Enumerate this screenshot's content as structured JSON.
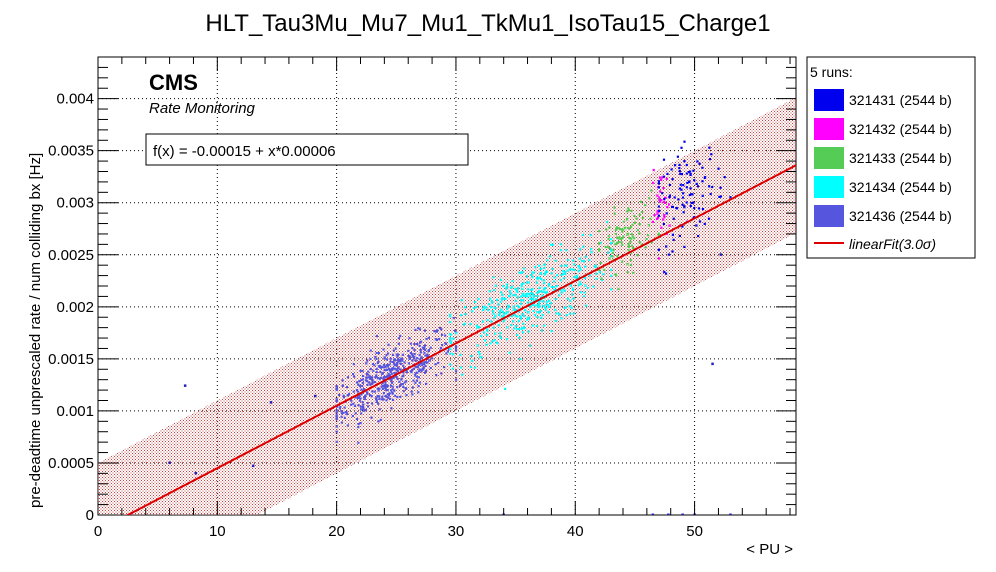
{
  "chart_data": {
    "type": "scatter",
    "title": "HLT_Tau3Mu_Mu7_Mu1_TkMu1_IsoTau15_Charge1",
    "xlabel": "< PU >",
    "ylabel": "pre-deadtime unprescaled rate / num colliding bx [Hz]",
    "xlim": [
      0,
      58.5
    ],
    "ylim": [
      0,
      0.0044
    ],
    "x_ticks": [
      {
        "value": 0,
        "label": "0"
      },
      {
        "value": 10,
        "label": "10"
      },
      {
        "value": 20,
        "label": "20"
      },
      {
        "value": 30,
        "label": "30"
      },
      {
        "value": 40,
        "label": "40"
      },
      {
        "value": 50,
        "label": "50"
      }
    ],
    "y_ticks": [
      {
        "value": 0,
        "label": "0"
      },
      {
        "value": 0.0005,
        "label": "0.0005"
      },
      {
        "value": 0.001,
        "label": "0.001"
      },
      {
        "value": 0.0015,
        "label": "0.0015"
      },
      {
        "value": 0.002,
        "label": "0.002"
      },
      {
        "value": 0.0025,
        "label": "0.0025"
      },
      {
        "value": 0.003,
        "label": "0.003"
      },
      {
        "value": 0.0035,
        "label": "0.0035"
      },
      {
        "value": 0.004,
        "label": "0.004"
      }
    ],
    "grid": true,
    "legend_position": "right",
    "legend_header": "5 runs:",
    "annotation_main": "CMS",
    "annotation_sub": "Rate Monitoring",
    "fit_label": "f(x) = -0.00015 + x*0.00006",
    "fit": {
      "intercept": -0.00015,
      "slope": 6e-05,
      "band_halfwidth": 0.00065,
      "color": "#dd0000",
      "band_color": "#cc3333",
      "legend_label_prefix": "linearFit",
      "legend_label_suffix": "(3.0",
      "legend_label_sigma": "σ",
      "legend_label_close": ")"
    },
    "series": [
      {
        "name": "321431 (2544 b)",
        "color": "#0000ee",
        "pu_range": [
          47,
          53
        ],
        "clusters": [
          {
            "cx": 49.5,
            "cy": 0.00308,
            "sx": 1.5,
            "sy": 0.00022,
            "n": 110
          }
        ]
      },
      {
        "name": "321432 (2544 b)",
        "color": "#ff00ff",
        "pu_range": [
          46.5,
          48
        ],
        "clusters": [
          {
            "cx": 47.2,
            "cy": 0.00295,
            "sx": 0.4,
            "sy": 0.00018,
            "n": 35
          }
        ]
      },
      {
        "name": "321433 (2544 b)",
        "color": "#55cc55",
        "pu_range": [
          42,
          47
        ],
        "clusters": [
          {
            "cx": 44.2,
            "cy": 0.00268,
            "sx": 1.3,
            "sy": 0.00015,
            "n": 110
          }
        ]
      },
      {
        "name": "321434 (2544 b)",
        "color": "#00ffff",
        "pu_range": [
          29.5,
          43
        ],
        "clusters": [
          {
            "cx": 36.0,
            "cy": 0.00205,
            "sx": 3.3,
            "sy": 0.00018,
            "n": 420
          }
        ]
      },
      {
        "name": "321436 (2544 b)",
        "color": "#5555dd",
        "pu_range": [
          20,
          30
        ],
        "clusters": [
          {
            "cx": 24.5,
            "cy": 0.00133,
            "sx": 2.6,
            "sy": 0.00014,
            "n": 480
          }
        ]
      }
    ],
    "outliers": [
      {
        "x": 7.3,
        "y": 0.00124
      },
      {
        "x": 6.0,
        "y": 0.0005
      },
      {
        "x": 8.2,
        "y": 0.0004
      },
      {
        "x": 13.0,
        "y": 0.00047
      },
      {
        "x": 14.5,
        "y": 0.00108
      },
      {
        "x": 18.2,
        "y": 0.00114
      },
      {
        "x": 51.5,
        "y": 0.00145
      },
      {
        "x": 52.2,
        "y": 0.0025
      },
      {
        "x": 34.0,
        "y": 0.0
      },
      {
        "x": 46.5,
        "y": 0.0
      },
      {
        "x": 47.8,
        "y": 0.0
      },
      {
        "x": 49.0,
        "y": 0.0
      },
      {
        "x": 53.0,
        "y": 0.0
      },
      {
        "x": 50.0,
        "y": 0.0
      }
    ]
  }
}
